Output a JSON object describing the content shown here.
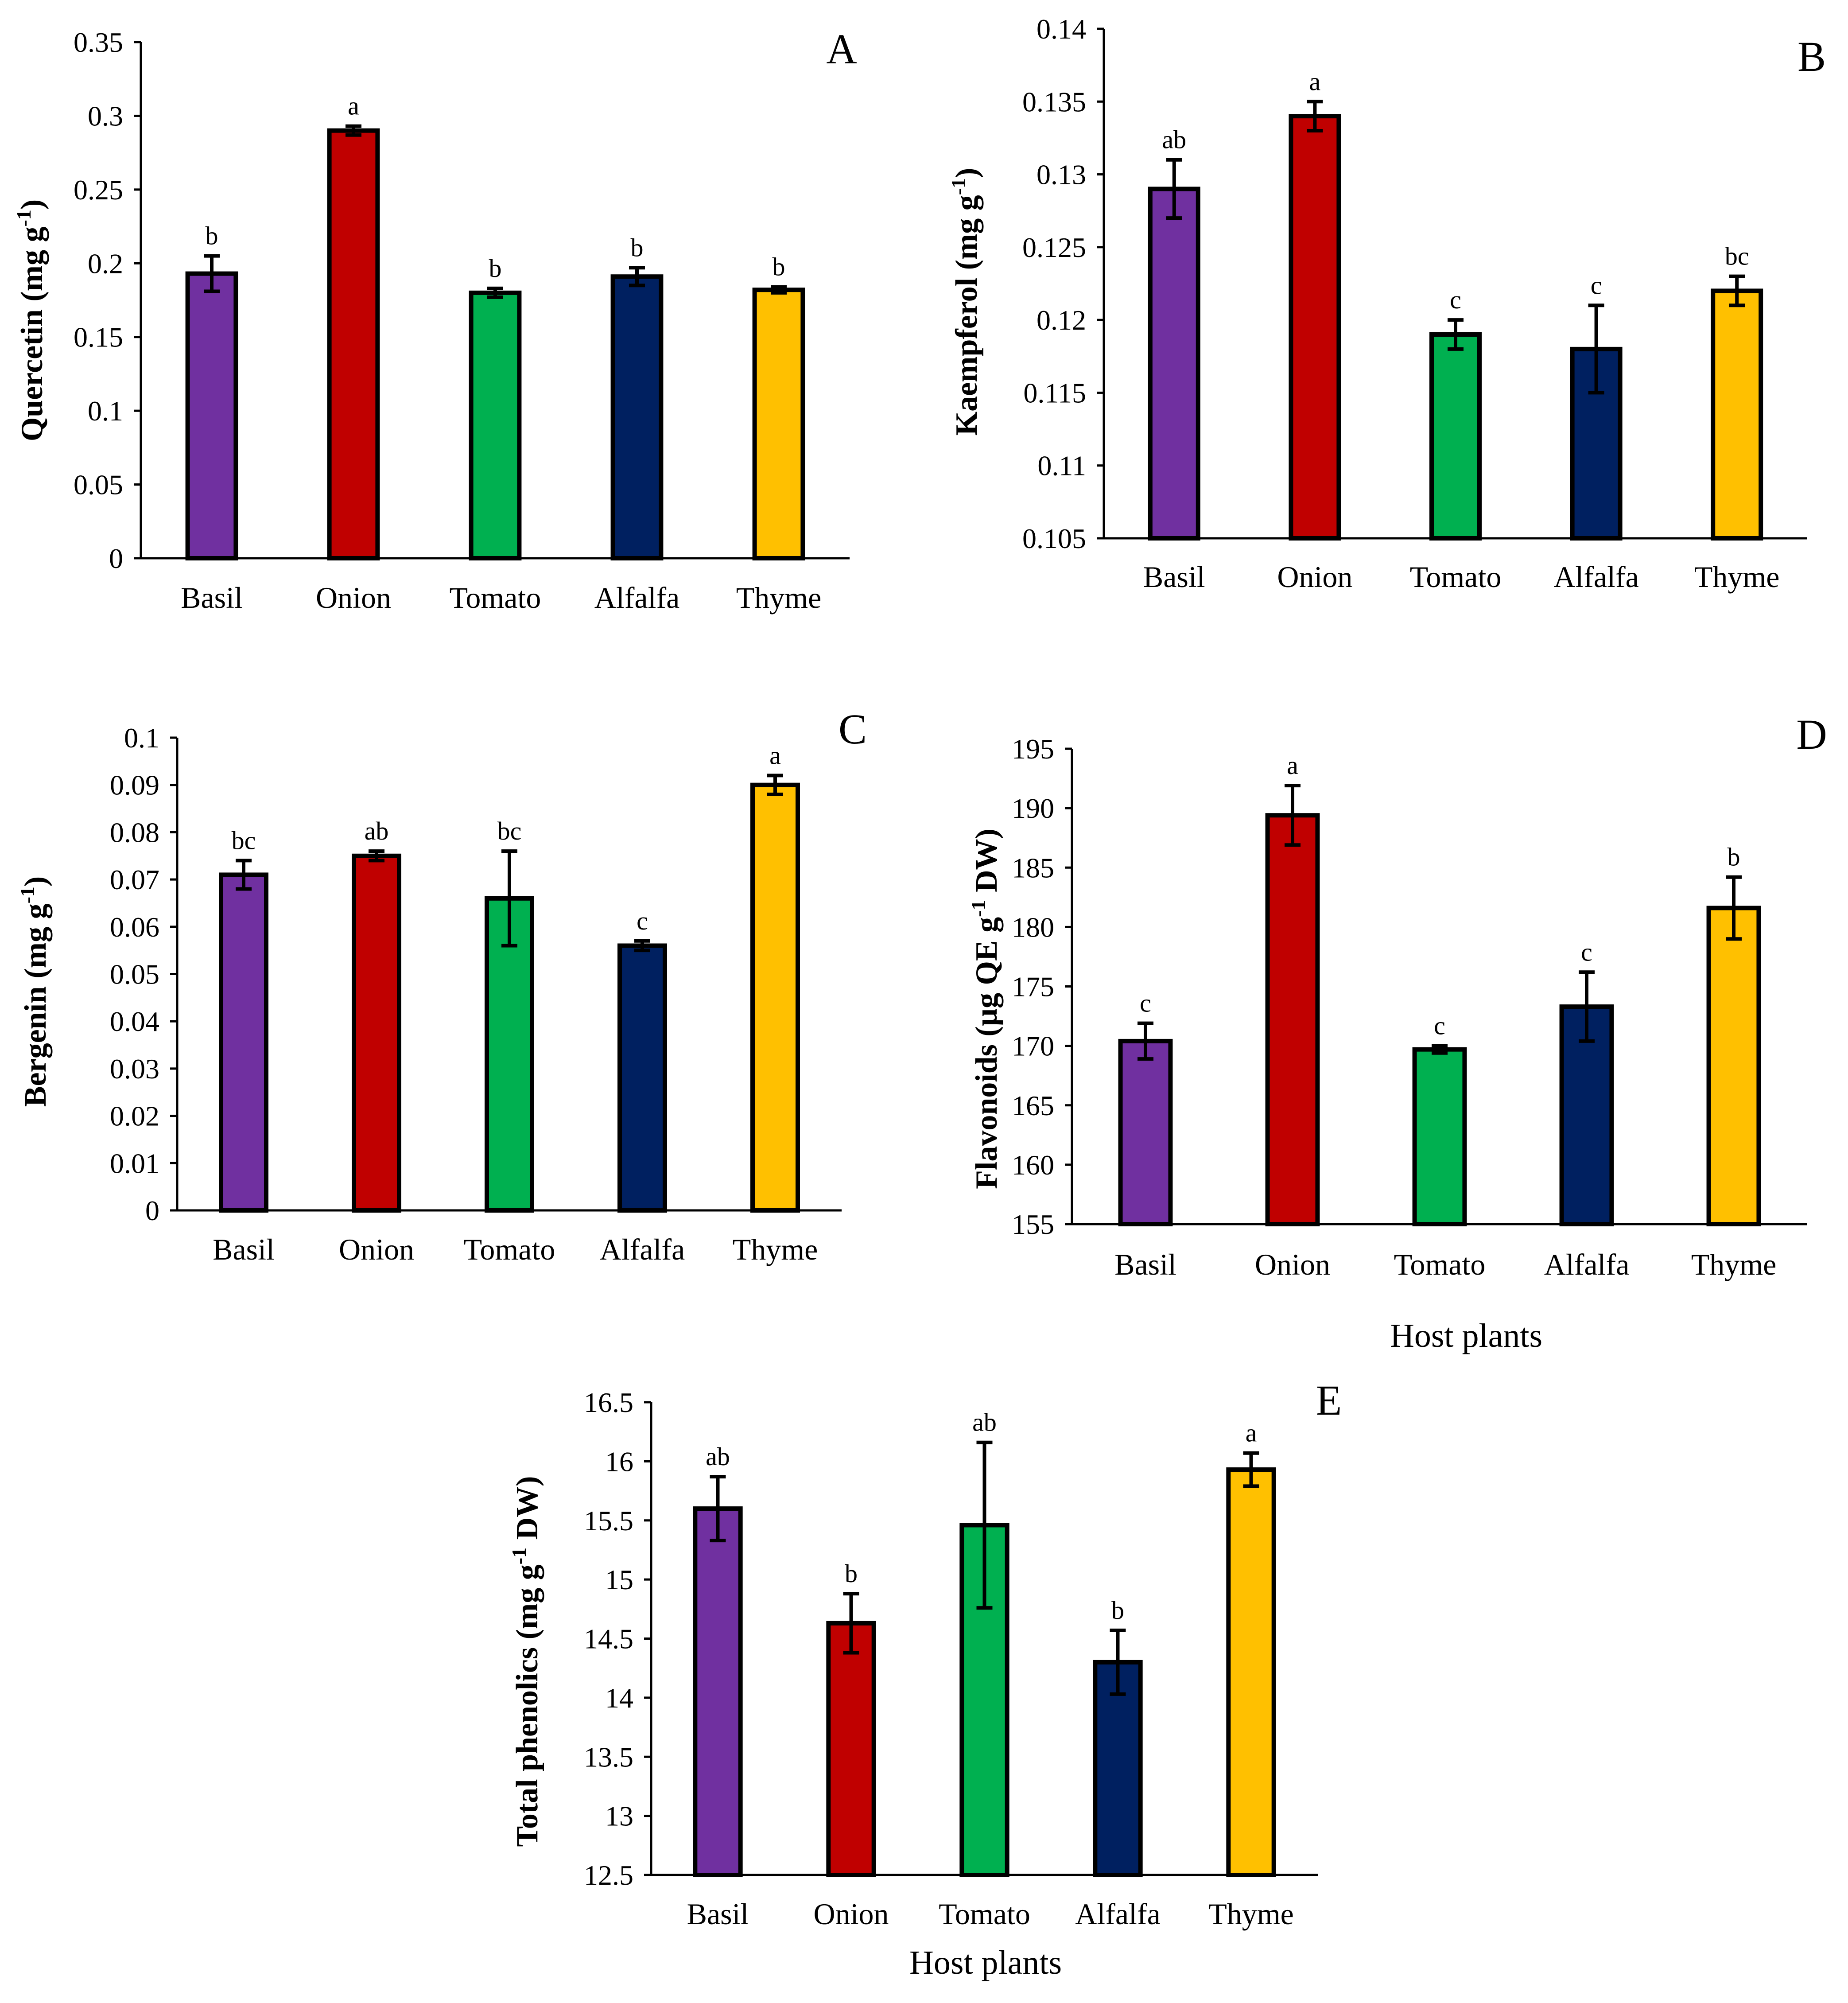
{
  "colors": {
    "Basil": "#7030A0",
    "Onion": "#C00000",
    "Tomato": "#00B050",
    "Alfalfa": "#002060",
    "Thyme": "#FFC000",
    "outline": "#000000"
  },
  "chart_data": [
    {
      "id": "A",
      "type": "bar",
      "panel_label": "A",
      "ylabel_main": "Quercetin (mg g",
      "ylabel_sup": "-1",
      "ylabel_tail": ")",
      "xlabel": "",
      "categories": [
        "Basil",
        "Onion",
        "Tomato",
        "Alfalfa",
        "Thyme"
      ],
      "values": [
        0.193,
        0.29,
        0.18,
        0.191,
        0.182
      ],
      "errors": [
        0.012,
        0.003,
        0.003,
        0.006,
        0.002
      ],
      "letters": [
        "b",
        "a",
        "b",
        "b",
        "b"
      ],
      "ylim": [
        0,
        0.35
      ],
      "yticks": [
        0,
        0.05,
        0.1,
        0.15,
        0.2,
        0.25,
        0.3,
        0.35
      ],
      "ytick_labels": [
        "0",
        "0.05",
        "0.1",
        "0.15",
        "0.2",
        "0.25",
        "0.3",
        "0.35"
      ],
      "grid": false
    },
    {
      "id": "B",
      "type": "bar",
      "panel_label": "B",
      "ylabel_main": "Kaempferol (mg g",
      "ylabel_sup": "-1",
      "ylabel_tail": ")",
      "xlabel": "",
      "categories": [
        "Basil",
        "Onion",
        "Tomato",
        "Alfalfa",
        "Thyme"
      ],
      "values": [
        0.129,
        0.134,
        0.119,
        0.118,
        0.122
      ],
      "errors": [
        0.002,
        0.001,
        0.001,
        0.003,
        0.001
      ],
      "letters": [
        "ab",
        "a",
        "c",
        "c",
        "bc"
      ],
      "ylim": [
        0.105,
        0.14
      ],
      "yticks": [
        0.105,
        0.11,
        0.115,
        0.12,
        0.125,
        0.13,
        0.135,
        0.14
      ],
      "ytick_labels": [
        "0.105",
        "0.11",
        "0.115",
        "0.12",
        "0.125",
        "0.13",
        "0.135",
        "0.14"
      ],
      "grid": false
    },
    {
      "id": "C",
      "type": "bar",
      "panel_label": "C",
      "ylabel_main": "Bergenin (mg g",
      "ylabel_sup": "-1",
      "ylabel_tail": ")",
      "xlabel": "",
      "categories": [
        "Basil",
        "Onion",
        "Tomato",
        "Alfalfa",
        "Thyme"
      ],
      "values": [
        0.071,
        0.075,
        0.066,
        0.056,
        0.09
      ],
      "errors": [
        0.003,
        0.001,
        0.01,
        0.001,
        0.002
      ],
      "letters": [
        "bc",
        "ab",
        "bc",
        "c",
        "a"
      ],
      "ylim": [
        0,
        0.1
      ],
      "yticks": [
        0,
        0.01,
        0.02,
        0.03,
        0.04,
        0.05,
        0.06,
        0.07,
        0.08,
        0.09,
        0.1
      ],
      "ytick_labels": [
        "0",
        "0.01",
        "0.02",
        "0.03",
        "0.04",
        "0.05",
        "0.06",
        "0.07",
        "0.08",
        "0.09",
        "0.1"
      ],
      "grid": false
    },
    {
      "id": "D",
      "type": "bar",
      "panel_label": "D",
      "ylabel_main": "Flavonoids (µg QE g",
      "ylabel_sup": "-1",
      "ylabel_tail": " DW)",
      "xlabel": "Host plants",
      "categories": [
        "Basil",
        "Onion",
        "Tomato",
        "Alfalfa",
        "Thyme"
      ],
      "values": [
        170.4,
        189.4,
        169.7,
        173.3,
        181.6
      ],
      "errors": [
        1.5,
        2.5,
        0.3,
        2.9,
        2.6
      ],
      "letters": [
        "c",
        "a",
        "c",
        "c",
        "b"
      ],
      "ylim": [
        155,
        195
      ],
      "yticks": [
        155,
        160,
        165,
        170,
        175,
        180,
        185,
        190,
        195
      ],
      "ytick_labels": [
        "155",
        "160",
        "165",
        "170",
        "175",
        "180",
        "185",
        "190",
        "195"
      ],
      "grid": false
    },
    {
      "id": "E",
      "type": "bar",
      "panel_label": "E",
      "ylabel_main": "Total phenolics (mg g",
      "ylabel_sup": "-1",
      "ylabel_tail": " DW)",
      "xlabel": "Host plants",
      "categories": [
        "Basil",
        "Onion",
        "Tomato",
        "Alfalfa",
        "Thyme"
      ],
      "values": [
        15.6,
        14.63,
        15.46,
        14.3,
        15.93
      ],
      "errors": [
        0.27,
        0.25,
        0.7,
        0.27,
        0.14
      ],
      "letters": [
        "ab",
        "b",
        "ab",
        "b",
        "a"
      ],
      "ylim": [
        12.5,
        16.5
      ],
      "yticks": [
        12.5,
        13,
        13.5,
        14,
        14.5,
        15,
        15.5,
        16,
        16.5
      ],
      "ytick_labels": [
        "12.5",
        "13",
        "13.5",
        "14",
        "14.5",
        "15",
        "15.5",
        "16",
        "16.5"
      ],
      "grid": false
    }
  ]
}
